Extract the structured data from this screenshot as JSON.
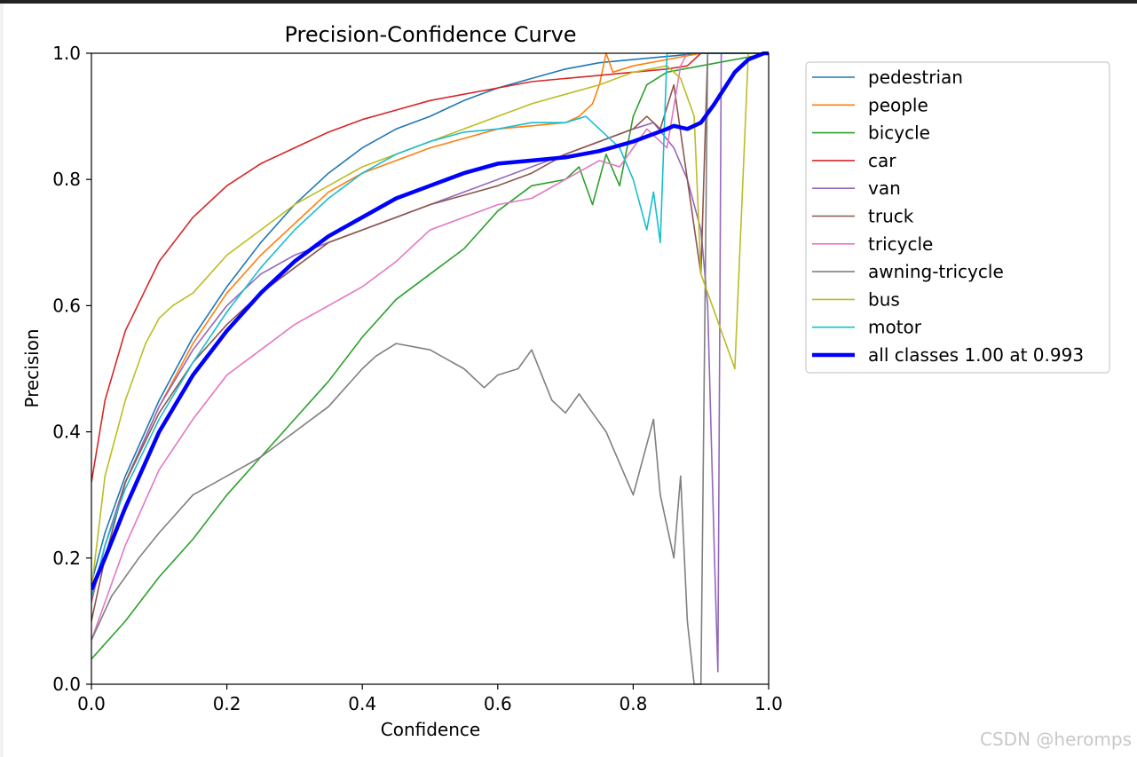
{
  "chart_data": {
    "type": "line",
    "title": "Precision-Confidence Curve",
    "xlabel": "Confidence",
    "ylabel": "Precision",
    "xlim": [
      0.0,
      1.0
    ],
    "ylim": [
      0.0,
      1.0
    ],
    "xticks": [
      "0.0",
      "0.2",
      "0.4",
      "0.6",
      "0.8",
      "1.0"
    ],
    "yticks": [
      "0.0",
      "0.2",
      "0.4",
      "0.6",
      "0.8",
      "1.0"
    ],
    "legend_position": "outside-right-top",
    "series": [
      {
        "name": "pedestrian",
        "color": "#1f77b4",
        "x": [
          0,
          0.02,
          0.05,
          0.1,
          0.15,
          0.2,
          0.25,
          0.3,
          0.35,
          0.4,
          0.45,
          0.5,
          0.55,
          0.6,
          0.65,
          0.7,
          0.75,
          0.8,
          0.85,
          0.9,
          0.95,
          1.0
        ],
        "y": [
          0.16,
          0.24,
          0.33,
          0.45,
          0.55,
          0.63,
          0.7,
          0.76,
          0.81,
          0.85,
          0.88,
          0.9,
          0.925,
          0.945,
          0.96,
          0.975,
          0.985,
          0.99,
          0.995,
          1.0,
          1.0,
          1.0
        ]
      },
      {
        "name": "people",
        "color": "#ff7f0e",
        "x": [
          0,
          0.02,
          0.05,
          0.1,
          0.15,
          0.2,
          0.25,
          0.3,
          0.35,
          0.4,
          0.45,
          0.5,
          0.55,
          0.6,
          0.65,
          0.7,
          0.72,
          0.74,
          0.75,
          0.76,
          0.77,
          0.8,
          0.85,
          0.9,
          1.0
        ],
        "y": [
          0.13,
          0.22,
          0.32,
          0.44,
          0.54,
          0.62,
          0.68,
          0.73,
          0.78,
          0.81,
          0.83,
          0.85,
          0.865,
          0.88,
          0.885,
          0.89,
          0.9,
          0.92,
          0.95,
          1.0,
          0.97,
          0.98,
          0.99,
          1.0,
          1.0
        ]
      },
      {
        "name": "bicycle",
        "color": "#2ca02c",
        "x": [
          0,
          0.05,
          0.1,
          0.15,
          0.2,
          0.25,
          0.3,
          0.35,
          0.4,
          0.45,
          0.5,
          0.55,
          0.6,
          0.65,
          0.7,
          0.72,
          0.74,
          0.76,
          0.78,
          0.8,
          0.82,
          0.85,
          0.9,
          1.0
        ],
        "y": [
          0.04,
          0.1,
          0.17,
          0.23,
          0.3,
          0.36,
          0.42,
          0.48,
          0.55,
          0.61,
          0.65,
          0.69,
          0.75,
          0.79,
          0.8,
          0.82,
          0.76,
          0.84,
          0.79,
          0.9,
          0.95,
          0.97,
          0.98,
          1.0
        ]
      },
      {
        "name": "car",
        "color": "#d62728",
        "x": [
          0,
          0.02,
          0.05,
          0.1,
          0.15,
          0.2,
          0.25,
          0.3,
          0.35,
          0.4,
          0.45,
          0.5,
          0.55,
          0.6,
          0.65,
          0.7,
          0.75,
          0.8,
          0.85,
          0.88,
          0.9,
          0.91,
          1.0
        ],
        "y": [
          0.32,
          0.45,
          0.56,
          0.67,
          0.74,
          0.79,
          0.825,
          0.85,
          0.875,
          0.895,
          0.91,
          0.925,
          0.935,
          0.945,
          0.955,
          0.96,
          0.965,
          0.97,
          0.975,
          0.98,
          1.0,
          1.0,
          1.0
        ]
      },
      {
        "name": "van",
        "color": "#9467bd",
        "x": [
          0,
          0.02,
          0.05,
          0.1,
          0.15,
          0.2,
          0.25,
          0.3,
          0.35,
          0.4,
          0.45,
          0.5,
          0.55,
          0.6,
          0.65,
          0.7,
          0.75,
          0.8,
          0.83,
          0.86,
          0.88,
          0.9,
          0.91,
          0.92,
          0.925,
          0.93,
          1.0
        ],
        "y": [
          0.13,
          0.22,
          0.32,
          0.44,
          0.53,
          0.6,
          0.65,
          0.68,
          0.7,
          0.72,
          0.74,
          0.76,
          0.78,
          0.8,
          0.82,
          0.84,
          0.86,
          0.88,
          0.89,
          0.85,
          0.8,
          0.72,
          0.6,
          0.2,
          0.02,
          1.0,
          1.0
        ]
      },
      {
        "name": "truck",
        "color": "#8c564b",
        "x": [
          0,
          0.02,
          0.05,
          0.1,
          0.15,
          0.2,
          0.25,
          0.3,
          0.35,
          0.4,
          0.45,
          0.5,
          0.55,
          0.6,
          0.65,
          0.7,
          0.75,
          0.8,
          0.82,
          0.84,
          0.86,
          0.88,
          0.9,
          0.91,
          0.92,
          1.0
        ],
        "y": [
          0.1,
          0.2,
          0.32,
          0.43,
          0.51,
          0.57,
          0.62,
          0.66,
          0.7,
          0.72,
          0.74,
          0.76,
          0.775,
          0.79,
          0.81,
          0.84,
          0.86,
          0.88,
          0.9,
          0.88,
          0.95,
          0.8,
          0.65,
          1.0,
          1.0,
          1.0
        ]
      },
      {
        "name": "tricycle",
        "color": "#e377c2",
        "x": [
          0,
          0.05,
          0.1,
          0.15,
          0.2,
          0.25,
          0.3,
          0.35,
          0.4,
          0.45,
          0.5,
          0.55,
          0.6,
          0.65,
          0.7,
          0.75,
          0.78,
          0.8,
          0.82,
          0.85,
          0.87,
          0.88,
          1.0
        ],
        "y": [
          0.07,
          0.22,
          0.34,
          0.42,
          0.49,
          0.53,
          0.57,
          0.6,
          0.63,
          0.67,
          0.72,
          0.74,
          0.76,
          0.77,
          0.8,
          0.83,
          0.82,
          0.85,
          0.88,
          0.85,
          0.98,
          1.0,
          1.0
        ]
      },
      {
        "name": "awning-tricycle",
        "color": "#7f7f7f",
        "x": [
          0,
          0.03,
          0.07,
          0.1,
          0.15,
          0.2,
          0.25,
          0.3,
          0.35,
          0.4,
          0.42,
          0.45,
          0.5,
          0.55,
          0.58,
          0.6,
          0.63,
          0.65,
          0.68,
          0.7,
          0.72,
          0.74,
          0.76,
          0.78,
          0.8,
          0.82,
          0.83,
          0.84,
          0.86,
          0.87,
          0.88,
          0.89,
          0.9,
          0.91,
          1.0
        ],
        "y": [
          0.07,
          0.14,
          0.2,
          0.24,
          0.3,
          0.33,
          0.36,
          0.4,
          0.44,
          0.5,
          0.52,
          0.54,
          0.53,
          0.5,
          0.47,
          0.49,
          0.5,
          0.53,
          0.45,
          0.43,
          0.46,
          0.43,
          0.4,
          0.35,
          0.3,
          0.38,
          0.42,
          0.3,
          0.2,
          0.33,
          0.1,
          0.0,
          0.0,
          1.0,
          1.0
        ]
      },
      {
        "name": "bus",
        "color": "#bcbd22",
        "x": [
          0,
          0.02,
          0.05,
          0.08,
          0.1,
          0.12,
          0.15,
          0.2,
          0.25,
          0.3,
          0.35,
          0.4,
          0.45,
          0.5,
          0.55,
          0.6,
          0.65,
          0.7,
          0.75,
          0.8,
          0.85,
          0.87,
          0.89,
          0.9,
          0.95,
          0.97,
          1.0
        ],
        "y": [
          0.15,
          0.33,
          0.45,
          0.54,
          0.58,
          0.6,
          0.62,
          0.68,
          0.72,
          0.76,
          0.79,
          0.82,
          0.84,
          0.86,
          0.88,
          0.9,
          0.92,
          0.935,
          0.95,
          0.97,
          0.98,
          0.96,
          0.9,
          0.65,
          0.5,
          1.0,
          1.0
        ]
      },
      {
        "name": "motor",
        "color": "#17becf",
        "x": [
          0,
          0.02,
          0.05,
          0.1,
          0.15,
          0.2,
          0.25,
          0.3,
          0.35,
          0.4,
          0.45,
          0.5,
          0.55,
          0.6,
          0.65,
          0.7,
          0.73,
          0.75,
          0.78,
          0.8,
          0.82,
          0.83,
          0.84,
          0.85,
          0.86,
          1.0
        ],
        "y": [
          0.14,
          0.22,
          0.31,
          0.42,
          0.51,
          0.59,
          0.66,
          0.72,
          0.77,
          0.81,
          0.84,
          0.86,
          0.875,
          0.88,
          0.89,
          0.89,
          0.9,
          0.88,
          0.85,
          0.8,
          0.72,
          0.78,
          0.7,
          1.0,
          1.0,
          1.0
        ]
      },
      {
        "name": "all classes 1.00 at 0.993",
        "color": "#0000ff",
        "bold": true,
        "x": [
          0,
          0.02,
          0.05,
          0.1,
          0.15,
          0.2,
          0.25,
          0.3,
          0.35,
          0.4,
          0.45,
          0.5,
          0.55,
          0.6,
          0.65,
          0.7,
          0.75,
          0.8,
          0.85,
          0.86,
          0.88,
          0.9,
          0.92,
          0.95,
          0.97,
          0.993,
          1.0
        ],
        "y": [
          0.15,
          0.2,
          0.28,
          0.4,
          0.49,
          0.56,
          0.62,
          0.67,
          0.71,
          0.74,
          0.77,
          0.79,
          0.81,
          0.825,
          0.83,
          0.835,
          0.845,
          0.86,
          0.88,
          0.885,
          0.88,
          0.89,
          0.92,
          0.97,
          0.99,
          1.0,
          1.0
        ]
      }
    ]
  },
  "watermark": "CSDN @heromps"
}
